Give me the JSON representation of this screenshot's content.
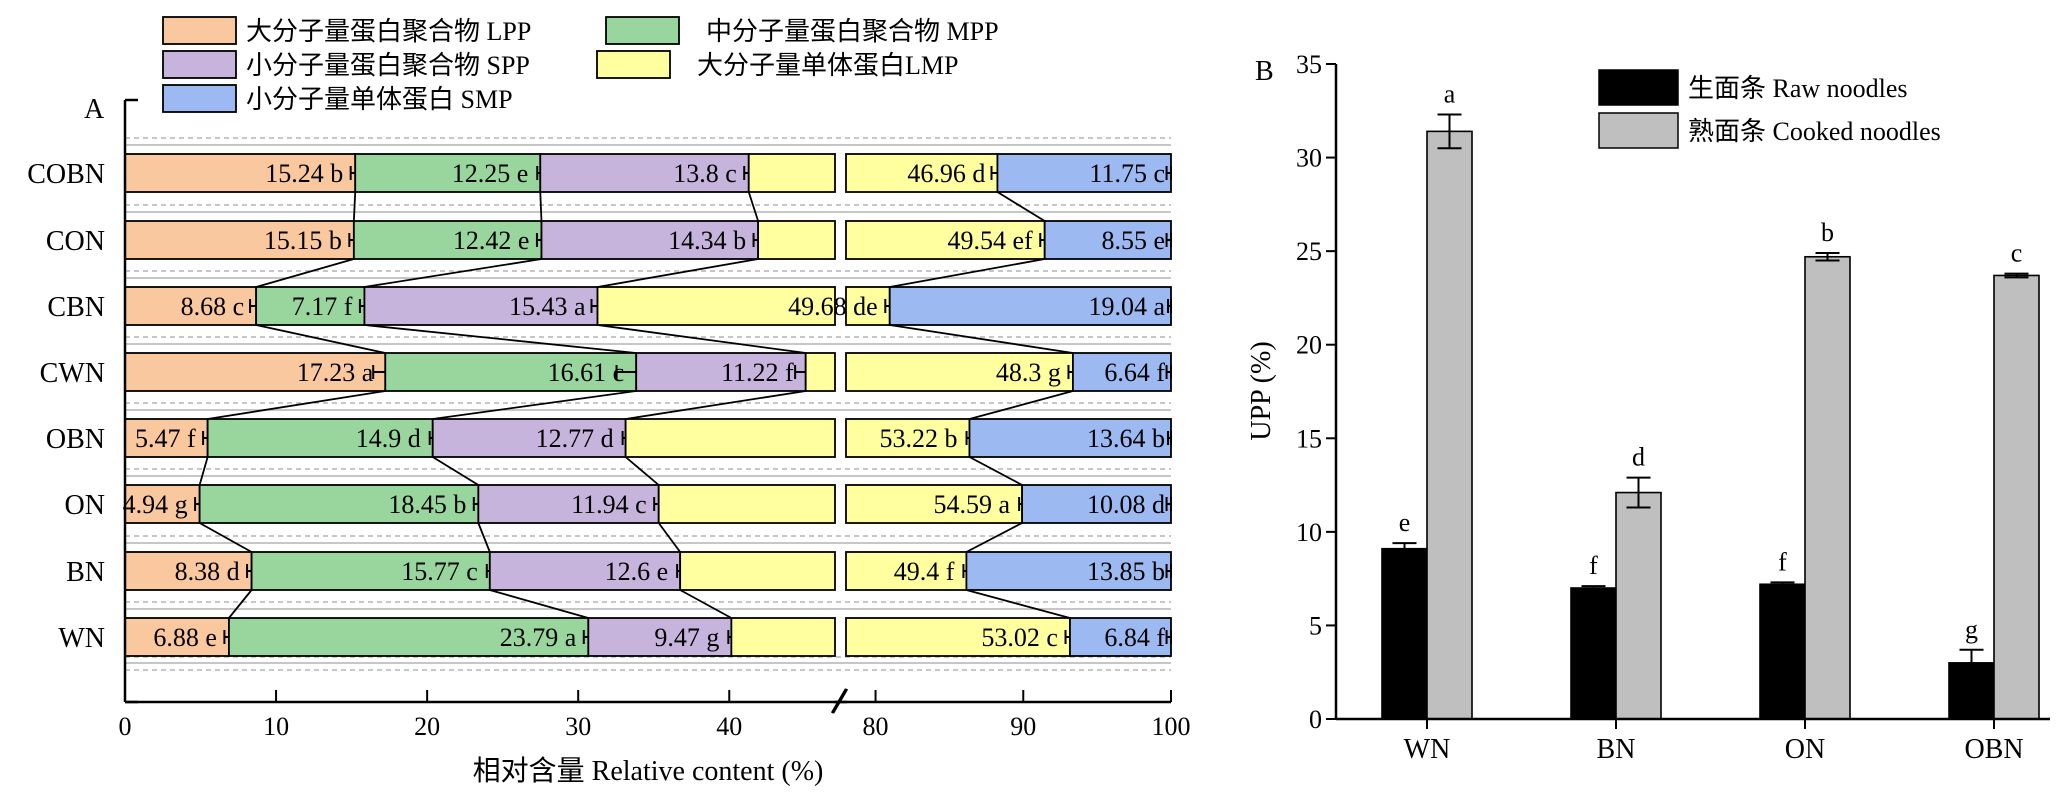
{
  "chart_data": [
    {
      "panel": "A",
      "type": "bar",
      "orientation": "horizontal",
      "stacked": true,
      "xlabel": "相对含量 Relative content (%)",
      "x_ticks": [
        "0",
        "10",
        "20",
        "30",
        "40",
        "80",
        "90",
        "100"
      ],
      "x_break": [
        47,
        78
      ],
      "categories": [
        "COBN",
        "CON",
        "CBN",
        "CWN",
        "OBN",
        "ON",
        "BN",
        "WN"
      ],
      "series": [
        {
          "name": "大分子量蛋白聚合物 LPP",
          "color": "#F9C89F",
          "values": [
            15.24,
            15.15,
            8.68,
            17.23,
            5.47,
            4.94,
            8.38,
            6.88
          ],
          "errors": [
            0.3,
            0.3,
            0.4,
            0.8,
            0.3,
            0.3,
            0.3,
            0.3
          ],
          "labels": [
            "15.24 b",
            "15.15 b",
            "8.68 c",
            "17.23 a",
            "5.47 f",
            "4.94 g",
            "8.38 d",
            "6.88 e"
          ]
        },
        {
          "name": "中分子量蛋白聚合物 MPP",
          "color": "#98D69E",
          "values": [
            12.25,
            12.42,
            7.17,
            16.61,
            14.9,
            18.45,
            15.77,
            23.79
          ],
          "errors": [
            0.2,
            0.3,
            0.3,
            1.3,
            0.2,
            0.3,
            0.2,
            0.3
          ],
          "labels": [
            "12.25 e",
            "12.42 e",
            "7.17 f",
            "16.61 c",
            "14.9 d",
            "18.45 b",
            "15.77 c",
            "23.79 a"
          ]
        },
        {
          "name": "小分子量蛋白聚合物 SPP",
          "color": "#C7B4DD",
          "values": [
            13.8,
            14.34,
            15.43,
            11.22,
            12.77,
            11.94,
            12.6,
            9.47
          ],
          "errors": [
            0.3,
            0.3,
            0.4,
            0.7,
            0.2,
            0.3,
            0.2,
            0.2
          ],
          "labels": [
            "13.8 c",
            "14.34 b",
            "15.43 a",
            "11.22 f",
            "12.77 d",
            "11.94 c",
            "12.6 e",
            "9.47 g"
          ]
        },
        {
          "name": "大分子量单体蛋白LMP",
          "color": "#FFFFA0",
          "values": [
            46.96,
            49.54,
            49.68,
            48.3,
            53.22,
            54.59,
            49.4,
            53.02
          ],
          "errors": [
            0.4,
            0.3,
            0.3,
            0.3,
            0.2,
            0.2,
            0.2,
            0.3
          ],
          "labels": [
            "46.96 d",
            "49.54 ef",
            "49.68 de",
            "48.3 g",
            "53.22 b",
            "54.59 a",
            "49.4 f",
            "53.02 c"
          ]
        },
        {
          "name": "小分子量单体蛋白 SMP",
          "color": "#9DB9F2",
          "values": [
            11.75,
            8.55,
            19.04,
            6.64,
            13.64,
            10.08,
            13.85,
            6.84
          ],
          "errors": [
            0.3,
            0.3,
            0.2,
            0.3,
            0.2,
            0.3,
            0.3,
            0.3
          ],
          "labels": [
            "11.75 c",
            "8.55 e",
            "19.04 a",
            "6.64 f",
            "13.64 b",
            "10.08 d",
            "13.85 b",
            "6.84 f"
          ]
        }
      ],
      "panel_label": "A"
    },
    {
      "panel": "B",
      "type": "bar",
      "ylabel": "UPP (%)",
      "ylim": [
        0,
        35
      ],
      "y_ticks": [
        "0",
        "5",
        "10",
        "15",
        "20",
        "25",
        "30",
        "35"
      ],
      "categories": [
        "WN",
        "BN",
        "ON",
        "OBN"
      ],
      "series": [
        {
          "name": "生面条 Raw noodles",
          "color": "#000000",
          "values": [
            9.1,
            7.0,
            7.2,
            3.0
          ],
          "errors": [
            0.3,
            0.1,
            0.1,
            0.7
          ],
          "labels": [
            "e",
            "f",
            "f",
            "g"
          ]
        },
        {
          "name": "熟面条 Cooked noodles",
          "color": "#BFBFBF",
          "values": [
            31.4,
            12.1,
            24.7,
            23.7
          ],
          "errors": [
            0.9,
            0.8,
            0.2,
            0.1
          ],
          "labels": [
            "a",
            "d",
            "b",
            "c"
          ]
        }
      ],
      "panel_label": "B"
    }
  ]
}
